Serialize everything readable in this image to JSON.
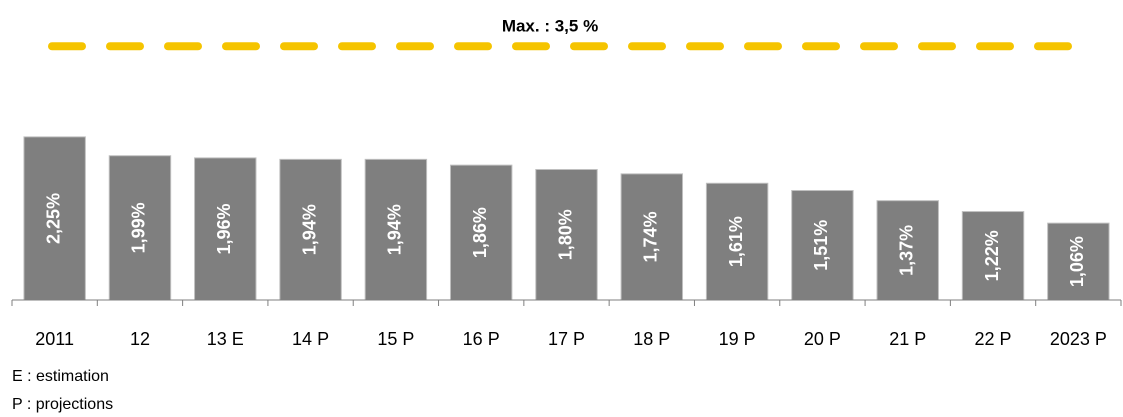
{
  "chart_data": {
    "type": "bar",
    "categories": [
      "2011",
      "12",
      "13 E",
      "14 P",
      "15 P",
      "16 P",
      "17 P",
      "18 P",
      "19 P",
      "20 P",
      "21 P",
      "22 P",
      "2023 P"
    ],
    "values": [
      2.25,
      1.99,
      1.96,
      1.94,
      1.94,
      1.86,
      1.8,
      1.74,
      1.61,
      1.51,
      1.37,
      1.22,
      1.06
    ],
    "value_labels": [
      "2,25%",
      "1,99%",
      "1,96%",
      "1,94%",
      "1,94%",
      "1,86%",
      "1,80%",
      "1,74%",
      "1,61%",
      "1,51%",
      "1,37%",
      "1,22%",
      "1,06%"
    ],
    "color": "#7f7f7f",
    "ylim": [
      0,
      4
    ],
    "reference_line": {
      "value": 3.5,
      "label": "Max. : 3,5 %",
      "color": "#f5c400"
    },
    "notes": [
      "E : estimation",
      "P : projections"
    ]
  }
}
